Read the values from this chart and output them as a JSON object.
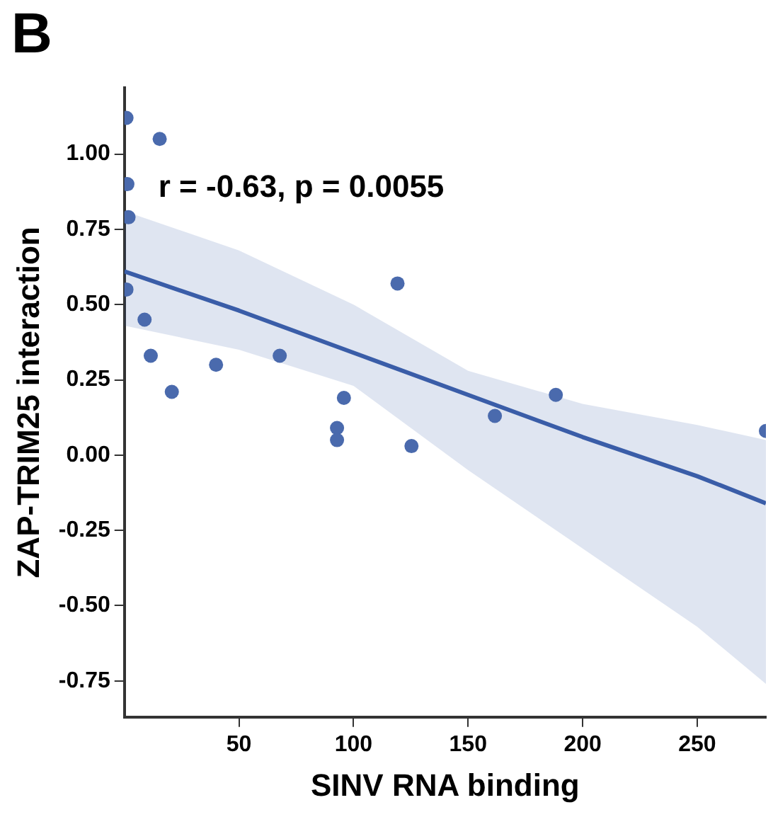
{
  "chart_data": {
    "type": "scatter",
    "xlabel": "SINV RNA binding",
    "ylabel": "ZAP-TRIM25 interaction",
    "annotations": [
      "B",
      "r = -0.63, p = 0.0055"
    ],
    "xlim": [
      0,
      280
    ],
    "ylim": [
      -0.87,
      1.22
    ],
    "xticks": [
      50,
      100,
      150,
      200,
      250
    ],
    "yticks": [
      {
        "value": -0.75,
        "label": "-0.75"
      },
      {
        "value": -0.5,
        "label": "-0.50"
      },
      {
        "value": -0.25,
        "label": "-0.25"
      },
      {
        "value": 0,
        "label": "0.00"
      },
      {
        "value": 0.25,
        "label": "0.25"
      },
      {
        "value": 0.5,
        "label": "0.50"
      },
      {
        "value": 0.75,
        "label": "0.75"
      },
      {
        "value": 1,
        "label": "1.00"
      }
    ],
    "grid": false,
    "legend": false,
    "marker": "circle",
    "series": [
      {
        "color": "#4a6aad",
        "x": [
          0.9,
          15.4,
          1.3,
          1.8,
          0.9,
          8.8,
          11.5,
          20.7,
          40,
          67.8,
          119.2,
          95.8,
          92.8,
          92.8,
          125.3,
          188.3,
          161.7,
          280
        ],
        "values": [
          1.12,
          1.05,
          0.9,
          0.79,
          0.55,
          0.45,
          0.33,
          0.21,
          0.3,
          0.33,
          0.57,
          0.19,
          0.09,
          0.05,
          0.03,
          0.2,
          0.13,
          0.08
        ]
      },
      {
        "type": "line",
        "color": "#3a5da8",
        "marker": "none",
        "line_style": "solid",
        "x": [
          0,
          50,
          100,
          150,
          200,
          250,
          280
        ],
        "values": [
          0.61,
          0.48,
          0.34,
          0.2,
          0.06,
          -0.07,
          -0.16
        ],
        "lower": [
          0.43,
          0.35,
          0.23,
          -0.05,
          -0.31,
          -0.57,
          -0.76
        ],
        "upper": [
          0.81,
          0.68,
          0.5,
          0.28,
          0.17,
          0.1,
          0.05
        ]
      }
    ]
  }
}
